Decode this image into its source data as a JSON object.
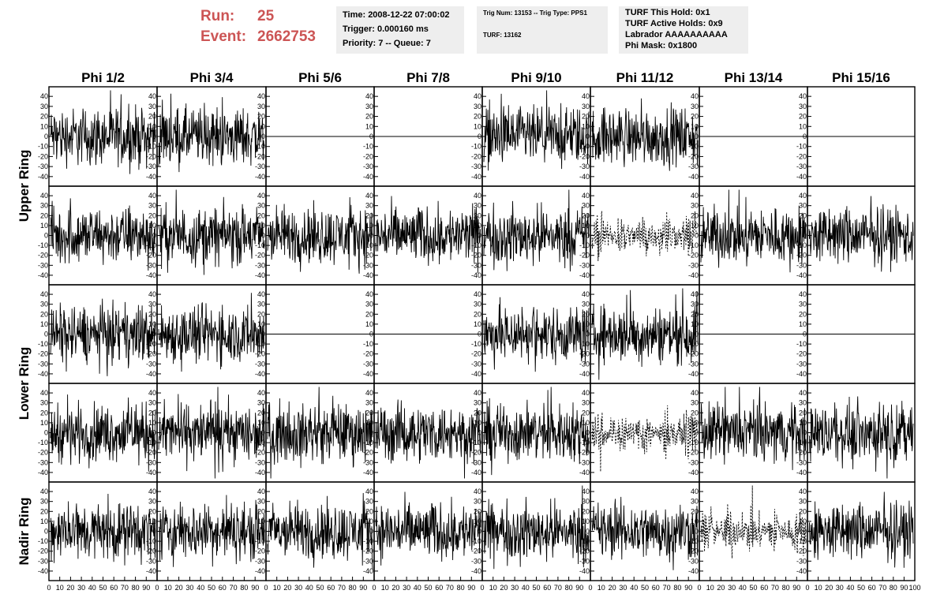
{
  "header": {
    "run_label": "Run:",
    "run_value": "25",
    "event_label": "Event:",
    "event_value": "2662753",
    "box1": [
      "Time: 2008-12-22 07:00:02",
      "Trigger: 0.000160 ms",
      "Priority: 7 -- Queue: 7"
    ],
    "box2": [
      "Trig Num: 13153 -- Trig Type: PPS1",
      "TURF: 13162"
    ],
    "box3": [
      "TURF This Hold: 0x1",
      "TURF Active Holds: 0x9",
      "Labrador AAAAAAAAAA",
      "Phi Mask: 0x1800"
    ]
  },
  "chart_data": {
    "type": "line",
    "columns": [
      "Phi 1/2",
      "Phi 3/4",
      "Phi 5/6",
      "Phi 7/8",
      "Phi 9/10",
      "Phi 11/12",
      "Phi 13/14",
      "Phi 15/16"
    ],
    "ring_labels": [
      "Upper Ring",
      "Lower Ring",
      "Nadir Ring"
    ],
    "ylim": [
      -48,
      48
    ],
    "yticks": [
      -40,
      -30,
      -20,
      -10,
      0,
      10,
      20,
      30,
      40
    ],
    "xlim": [
      0,
      100
    ],
    "xticks": [
      0,
      10,
      20,
      30,
      40,
      50,
      60,
      70,
      80,
      90,
      100
    ],
    "rows": [
      {
        "ring": "Upper Ring",
        "modes": [
          "noise",
          "noise",
          "flat",
          "flat",
          "noise",
          "noise",
          "flat",
          "flat"
        ]
      },
      {
        "ring": "Upper Ring",
        "modes": [
          "noise",
          "noise",
          "noise",
          "noise",
          "noise",
          "dashed",
          "noise",
          "noise"
        ]
      },
      {
        "ring": "Lower Ring",
        "modes": [
          "noise",
          "noise",
          "flat",
          "flat",
          "noise",
          "noise",
          "flat",
          "flat"
        ]
      },
      {
        "ring": "Lower Ring",
        "modes": [
          "noise",
          "noise",
          "noise",
          "noise",
          "noise",
          "dashed",
          "noise",
          "noise"
        ]
      },
      {
        "ring": "Nadir Ring",
        "modes": [
          "noise",
          "noise",
          "noise",
          "noise",
          "noise",
          "noise",
          "dashed",
          "noise"
        ]
      }
    ],
    "noise_amplitude": 14,
    "samples_per_trace": 260
  }
}
